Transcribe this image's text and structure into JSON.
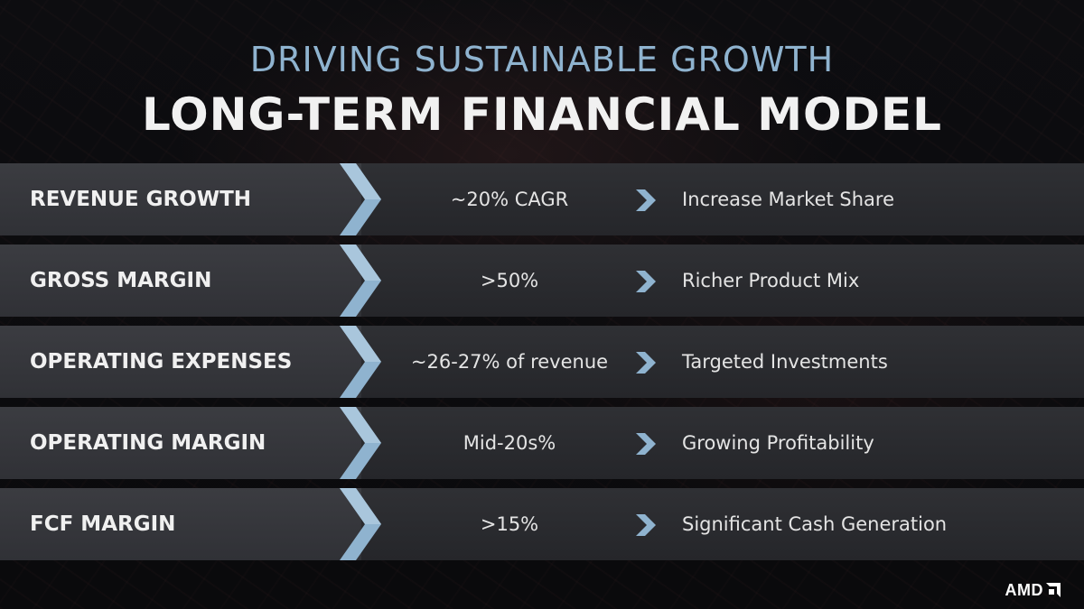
{
  "header": {
    "subtitle": "DRIVING SUSTAINABLE GROWTH",
    "title": "LONG-TERM FINANCIAL MODEL"
  },
  "rows": [
    {
      "label": "REVENUE GROWTH",
      "value": "~20% CAGR",
      "description": "Increase Market Share"
    },
    {
      "label": "GROSS MARGIN",
      "value": ">50%",
      "description": "Richer Product Mix"
    },
    {
      "label": "OPERATING EXPENSES",
      "value": "~26-27% of revenue",
      "description": "Targeted Investments"
    },
    {
      "label": "OPERATING MARGIN",
      "value": "Mid-20s%",
      "description": "Growing Profitability"
    },
    {
      "label": "FCF MARGIN",
      "value": ">15%",
      "description": "Significant Cash Generation"
    }
  ],
  "logo": {
    "text": "AMD",
    "icon": "amd-arrow-icon"
  },
  "colors": {
    "subtitle": "#8fb3cf",
    "chevron": "#8fb3cf",
    "row_background": "#2a2b2f"
  }
}
